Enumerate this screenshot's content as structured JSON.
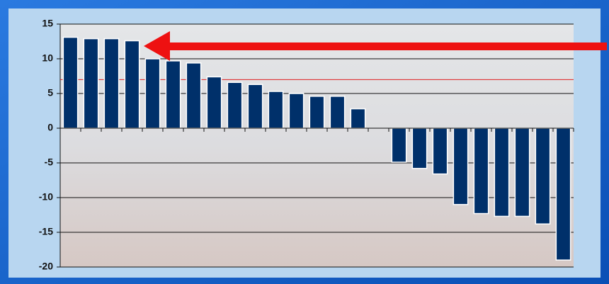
{
  "chart_data": {
    "type": "bar",
    "categories": [
      null,
      null,
      null,
      null,
      null,
      null,
      null,
      null,
      null,
      null,
      null,
      null,
      null,
      null,
      null,
      null,
      null,
      null,
      null,
      null,
      null,
      null,
      null,
      null,
      null
    ],
    "values": [
      13.1,
      12.9,
      12.9,
      12.6,
      10.0,
      9.7,
      9.4,
      7.4,
      6.6,
      6.3,
      5.3,
      5.0,
      4.6,
      4.6,
      2.8,
      null,
      -4.9,
      -5.8,
      -6.6,
      -11.0,
      -12.3,
      -12.7,
      -12.7,
      -13.8,
      -19.0
    ],
    "color": "#00306a",
    "ylim": [
      -20,
      15
    ],
    "yticks": [
      -20,
      -15,
      -10,
      -5,
      0,
      5,
      10,
      15
    ],
    "grid": true,
    "reference_line": {
      "value": 7,
      "color": "#e02020"
    }
  }
}
